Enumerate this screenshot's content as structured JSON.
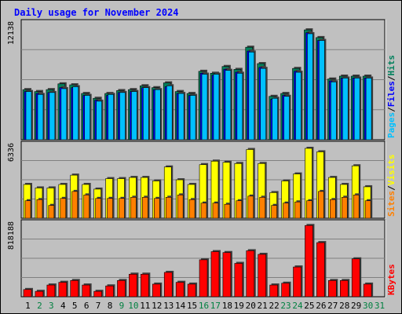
{
  "chart_data": {
    "type": "bar",
    "title": "Daily usage for November 2024",
    "categories": [
      "1",
      "2",
      "3",
      "4",
      "5",
      "6",
      "7",
      "8",
      "9",
      "10",
      "11",
      "12",
      "13",
      "14",
      "15",
      "16",
      "17",
      "18",
      "19",
      "20",
      "21",
      "22",
      "23",
      "24",
      "25",
      "26",
      "27",
      "28",
      "29",
      "30",
      "31"
    ],
    "weekend_days": [
      "2",
      "3",
      "9",
      "10",
      "16",
      "17",
      "23",
      "24",
      "30",
      "31"
    ],
    "panels": [
      {
        "id": "pages-files-hits",
        "ymax_label": "12138",
        "ymax": 12138,
        "series": [
          {
            "name": "Hits",
            "color": "#00805c",
            "values": [
              5200,
              5000,
              5200,
              5800,
              5700,
              4800,
              4300,
              4800,
              5100,
              5200,
              5600,
              5400,
              5900,
              5000,
              4800,
              7100,
              6900,
              7600,
              7300,
              9600,
              7900,
              4500,
              4800,
              7400,
              11400,
              10600,
              6300,
              6600,
              6600,
              6600,
              null
            ]
          },
          {
            "name": "Files",
            "color": "#0000ff",
            "values": [
              5000,
              4800,
              4900,
              5400,
              5400,
              4600,
              4100,
              4600,
              4900,
              5000,
              5400,
              5200,
              5500,
              4800,
              4600,
              6900,
              6700,
              7300,
              7000,
              9200,
              7500,
              4200,
              4600,
              7100,
              11100,
              10300,
              6100,
              6400,
              6400,
              6400,
              null
            ]
          },
          {
            "name": "Pages",
            "color": "#00c0ff",
            "values": [
              5000,
              4700,
              4900,
              5300,
              5500,
              4600,
              4000,
              4700,
              4900,
              5000,
              5400,
              5200,
              5600,
              4800,
              4600,
              6800,
              6800,
              7200,
              6900,
              9100,
              7400,
              4300,
              4500,
              7000,
              11000,
              10300,
              6000,
              6400,
              6400,
              6400,
              null
            ]
          }
        ],
        "legend": [
          "Pages",
          "Files",
          "Hits"
        ]
      },
      {
        "id": "visits-sites",
        "ymax_label": "6336",
        "ymax": 6336,
        "series": [
          {
            "name": "Visits",
            "color": "#ffff00",
            "values": [
              2900,
              2600,
              2600,
              2900,
              3700,
              2900,
              2500,
              3400,
              3400,
              3500,
              3500,
              3200,
              4400,
              3300,
              2900,
              4600,
              4900,
              4800,
              4700,
              5900,
              4700,
              2200,
              3200,
              3800,
              6000,
              5700,
              3500,
              2900,
              4500,
              2700,
              null
            ]
          },
          {
            "name": "Sites",
            "color": "#ff8000",
            "values": [
              1500,
              1600,
              1100,
              1700,
              2300,
              2000,
              1700,
              1700,
              1700,
              1800,
              1800,
              1700,
              1800,
              2000,
              1600,
              1300,
              1300,
              1200,
              1500,
              1900,
              1800,
              1100,
              1300,
              1400,
              1500,
              2300,
              1600,
              1800,
              2000,
              1500,
              null
            ]
          }
        ],
        "legend": [
          "Sites",
          "Visits"
        ]
      },
      {
        "id": "kbytes",
        "ymax_label": "818188",
        "ymax": 818188,
        "series": [
          {
            "name": "KBytes",
            "color": "#ff0000",
            "values": [
              80000,
              60000,
              130000,
              160000,
              180000,
              130000,
              60000,
              120000,
              180000,
              250000,
              250000,
              140000,
              270000,
              160000,
              140000,
              410000,
              500000,
              490000,
              370000,
              510000,
              470000,
              130000,
              150000,
              330000,
              790000,
              600000,
              180000,
              180000,
              420000,
              140000,
              null
            ]
          }
        ],
        "legend": [
          "KBytes"
        ]
      }
    ]
  },
  "colors": {
    "frame": "#c0c0c0",
    "plot_bg": "#c0c0c0",
    "title": "#0000ff",
    "weekday_label": "#000000",
    "weekend_label": "#008040"
  }
}
